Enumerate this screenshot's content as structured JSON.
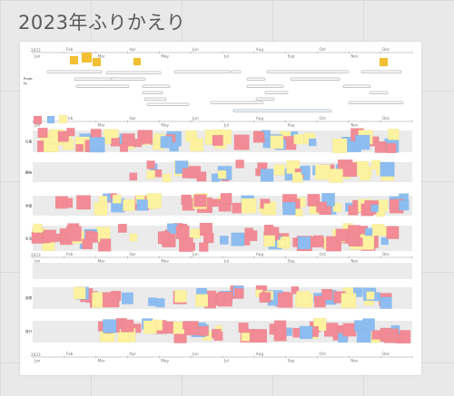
{
  "page": {
    "title": "2023年ふりかえり"
  },
  "timeline": {
    "year_label": "2023",
    "months_lower": [
      "Jan",
      "Mar",
      "May",
      "Jul",
      "Sep",
      "Nov"
    ],
    "months_upper": [
      "Feb",
      "Apr",
      "Jun",
      "Aug",
      "Oct",
      "Dec"
    ]
  },
  "lanes": {
    "project_label": "Proje-\nty.",
    "row_labels": [
      "仕事",
      "趣味",
      "学習",
      "生活",
      "",
      "読書",
      "旅行"
    ]
  },
  "colors": {
    "pink": "#f28b95",
    "blue": "#8dbdf0",
    "yellow": "#fdf2a0",
    "orange": "#f4c033",
    "band": "#ebebeb",
    "line": "#999999"
  }
}
